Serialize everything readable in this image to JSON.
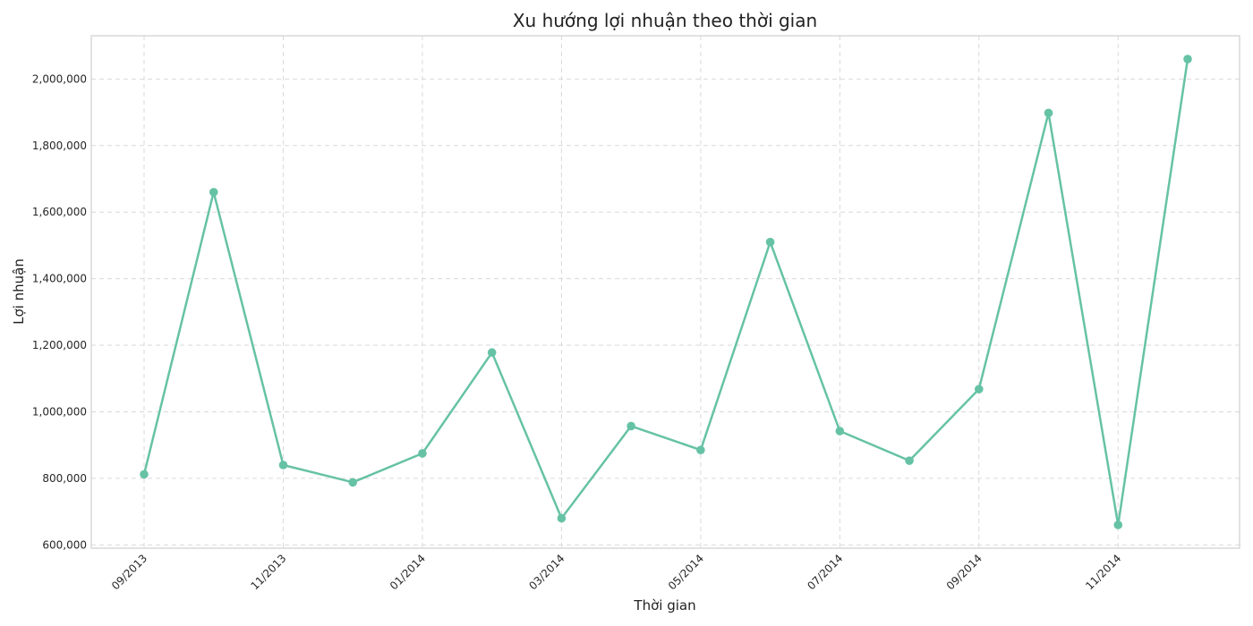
{
  "chart_data": {
    "type": "line",
    "title": "Xu hướng lợi nhuận theo thời gian",
    "xlabel": "Thời gian",
    "ylabel": "Lợi nhuận",
    "x": [
      "09/2013",
      "10/2013",
      "11/2013",
      "12/2013",
      "01/2014",
      "02/2014",
      "03/2014",
      "04/2014",
      "05/2014",
      "06/2014",
      "07/2014",
      "08/2014",
      "09/2014",
      "10/2014",
      "11/2014",
      "12/2014"
    ],
    "x_tick_labels": [
      "09/2013",
      "11/2013",
      "01/2014",
      "03/2014",
      "05/2014",
      "07/2014",
      "09/2014",
      "11/2014"
    ],
    "series": [
      {
        "values": [
          812000,
          1660000,
          840000,
          788000,
          875000,
          1178000,
          680000,
          957000,
          885000,
          1510000,
          942000,
          853000,
          1068000,
          1898000,
          660000,
          2060000
        ],
        "color": "#66c2a5"
      }
    ],
    "ylim": [
      590000,
      2130000
    ],
    "y_ticks": [
      600000,
      800000,
      1000000,
      1200000,
      1400000,
      1600000,
      1800000,
      2000000
    ],
    "y_tick_labels": [
      "600,000",
      "800,000",
      "1,000,000",
      "1,200,000",
      "1,400,000",
      "1,600,000",
      "1,800,000",
      "2,000,000"
    ],
    "grid": true,
    "marker": "circle"
  }
}
